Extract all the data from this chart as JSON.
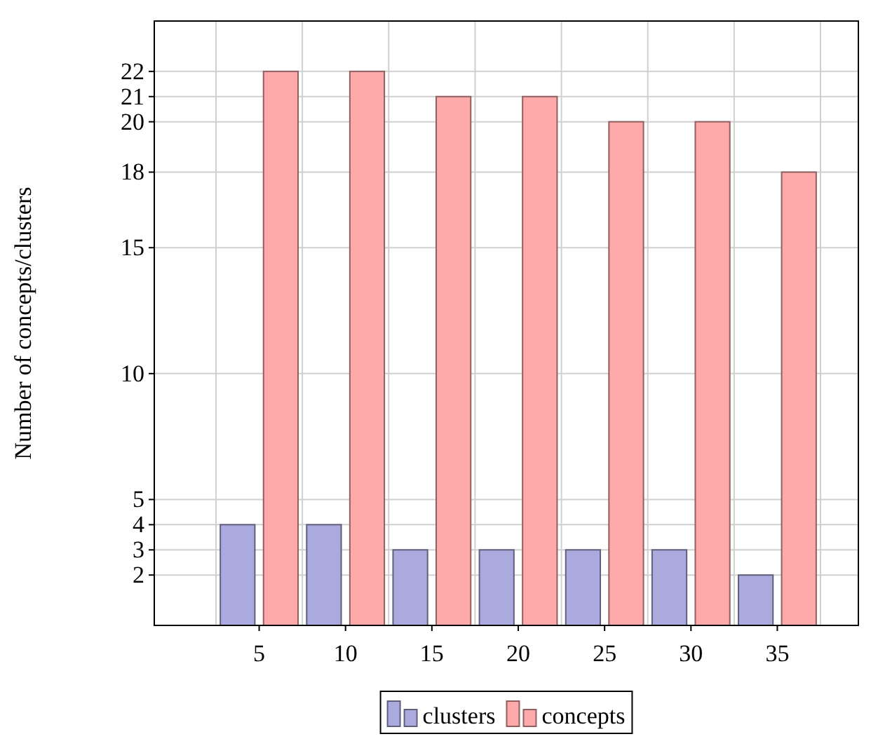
{
  "chart_data": {
    "type": "bar",
    "categories": [
      "5",
      "10",
      "15",
      "20",
      "25",
      "30",
      "35"
    ],
    "ylabel": "Number of concepts/clusters",
    "series": [
      {
        "name": "clusters",
        "color": "#aaaade",
        "values": [
          4,
          4,
          3,
          3,
          3,
          3,
          2
        ]
      },
      {
        "name": "concepts",
        "color": "#ffaaaa",
        "values": [
          22,
          22,
          21,
          21,
          20,
          20,
          18
        ]
      }
    ],
    "ylim": [
      0,
      24
    ],
    "yticks": [
      2,
      3,
      4,
      5,
      10,
      15,
      18,
      20,
      21,
      22
    ],
    "grid": true,
    "legend": "bottom"
  }
}
